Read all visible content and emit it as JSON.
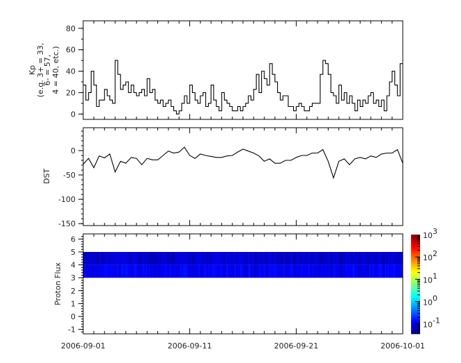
{
  "chart_data": [
    {
      "type": "line",
      "ylabel_lines": [
        "Kp",
        "(e.g. 3+ = 33,",
        "6- = 57,",
        "4 = 40, etc.)"
      ],
      "ylim": [
        -5,
        87
      ],
      "yticks": [
        0,
        20,
        40,
        60,
        80
      ],
      "x_start": "2006-09-01",
      "x_step_hours": 6,
      "values": [
        27,
        13,
        20,
        40,
        27,
        7,
        13,
        13,
        23,
        17,
        13,
        10,
        50,
        37,
        23,
        27,
        30,
        20,
        27,
        20,
        17,
        20,
        23,
        17,
        33,
        20,
        23,
        13,
        10,
        13,
        7,
        10,
        13,
        7,
        3,
        0,
        3,
        10,
        17,
        10,
        27,
        20,
        13,
        10,
        17,
        20,
        7,
        10,
        27,
        13,
        7,
        3,
        20,
        13,
        10,
        7,
        3,
        3,
        7,
        3,
        7,
        10,
        17,
        13,
        23,
        37,
        20,
        40,
        33,
        27,
        47,
        37,
        30,
        20,
        13,
        17,
        17,
        7,
        7,
        3,
        7,
        10,
        7,
        3,
        3,
        7,
        10,
        10,
        10,
        37,
        50,
        47,
        37,
        20,
        17,
        10,
        27,
        13,
        20,
        10,
        17,
        10,
        3,
        13,
        7,
        13,
        10,
        17,
        20,
        10,
        13,
        7,
        13,
        3,
        17,
        30,
        40,
        27,
        17,
        47
      ],
      "color": "#000000"
    },
    {
      "type": "line",
      "ylabel": "DST",
      "ylim": [
        -154,
        47
      ],
      "yticks": [
        0,
        -50,
        -100,
        -150
      ],
      "x_start": "2006-09-01",
      "x_step_hours": 12,
      "values": [
        -28,
        -16,
        -35,
        -11,
        -15,
        -7,
        -44,
        -22,
        -26,
        -14,
        -16,
        -29,
        -16,
        -19,
        -19,
        -10,
        -1,
        -5,
        -3,
        7,
        -10,
        -16,
        -7,
        -10,
        -12,
        -14,
        -14,
        -11,
        -10,
        -3,
        3,
        -1,
        -5,
        -11,
        -22,
        -17,
        -26,
        -26,
        -20,
        -20,
        -14,
        -10,
        -10,
        -5,
        -5,
        2,
        -22,
        -56,
        -22,
        -17,
        -29,
        -17,
        -14,
        -17,
        -11,
        -14,
        -7,
        -5,
        -5,
        2,
        -26
      ],
      "color": "#000000"
    },
    {
      "type": "heatmap",
      "ylabel": "Proton Flux",
      "ylim": [
        -1.35,
        6.4
      ],
      "yticks": [
        6,
        5,
        4,
        3,
        2,
        1,
        0,
        -1
      ],
      "band_y": [
        3,
        5
      ],
      "typical_value": 0.1,
      "colorbar": {
        "scale": "log",
        "range": [
          0.036,
          1000
        ],
        "ticks": [
          {
            "value": 0.1,
            "base": "10",
            "exp": "-1"
          },
          {
            "value": 1,
            "base": "10",
            "exp": "0"
          },
          {
            "value": 10,
            "base": "10",
            "exp": "1"
          },
          {
            "value": 100,
            "base": "10",
            "exp": "2"
          },
          {
            "value": 1000,
            "base": "10",
            "exp": "3"
          }
        ],
        "colormap": "jet"
      }
    }
  ],
  "x_axis": {
    "range": [
      "2006-09-01",
      "2006-10-01"
    ],
    "tick_labels": [
      "2006-09-01",
      "2006-09-11",
      "2006-09-21",
      "2006-10-01"
    ]
  }
}
